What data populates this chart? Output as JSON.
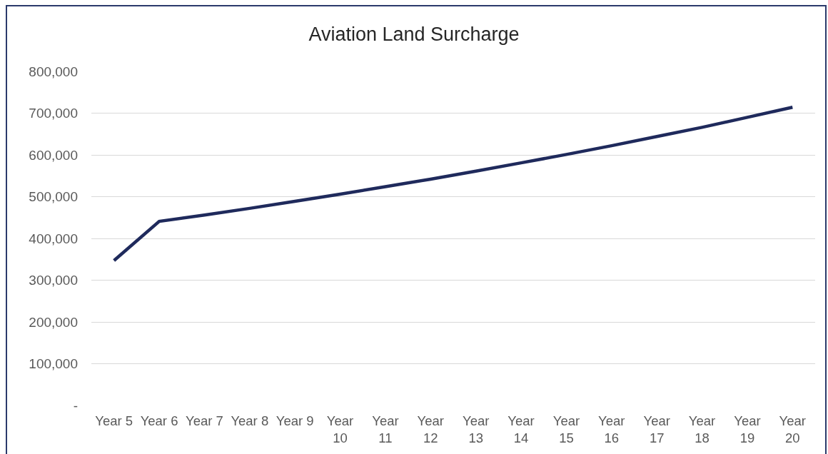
{
  "chart_data": {
    "type": "line",
    "title": "Aviation Land Surcharge",
    "categories": [
      "Year 5",
      "Year 6",
      "Year 7",
      "Year 8",
      "Year 9",
      "Year 10",
      "Year 11",
      "Year 12",
      "Year 13",
      "Year 14",
      "Year 15",
      "Year 16",
      "Year 17",
      "Year 18",
      "Year 19",
      "Year 20"
    ],
    "series": [
      {
        "color": "#1f2a5c",
        "values": [
          347000,
          441000,
          456000,
          472000,
          489000,
          506000,
          524000,
          542000,
          561000,
          581000,
          601000,
          622000,
          644000,
          666000,
          690000,
          714000
        ]
      }
    ],
    "ylim": [
      0,
      800000
    ],
    "yticks": [
      {
        "value": 0,
        "label": "-"
      },
      {
        "value": 100000,
        "label": "100,000"
      },
      {
        "value": 200000,
        "label": "200,000"
      },
      {
        "value": 300000,
        "label": "300,000"
      },
      {
        "value": 400000,
        "label": "400,000"
      },
      {
        "value": 500000,
        "label": "500,000"
      },
      {
        "value": 600000,
        "label": "600,000"
      },
      {
        "value": 700000,
        "label": "700,000"
      },
      {
        "value": 800000,
        "label": "800,000"
      }
    ],
    "grid": "y",
    "marker": "none",
    "line_style": "solid"
  }
}
